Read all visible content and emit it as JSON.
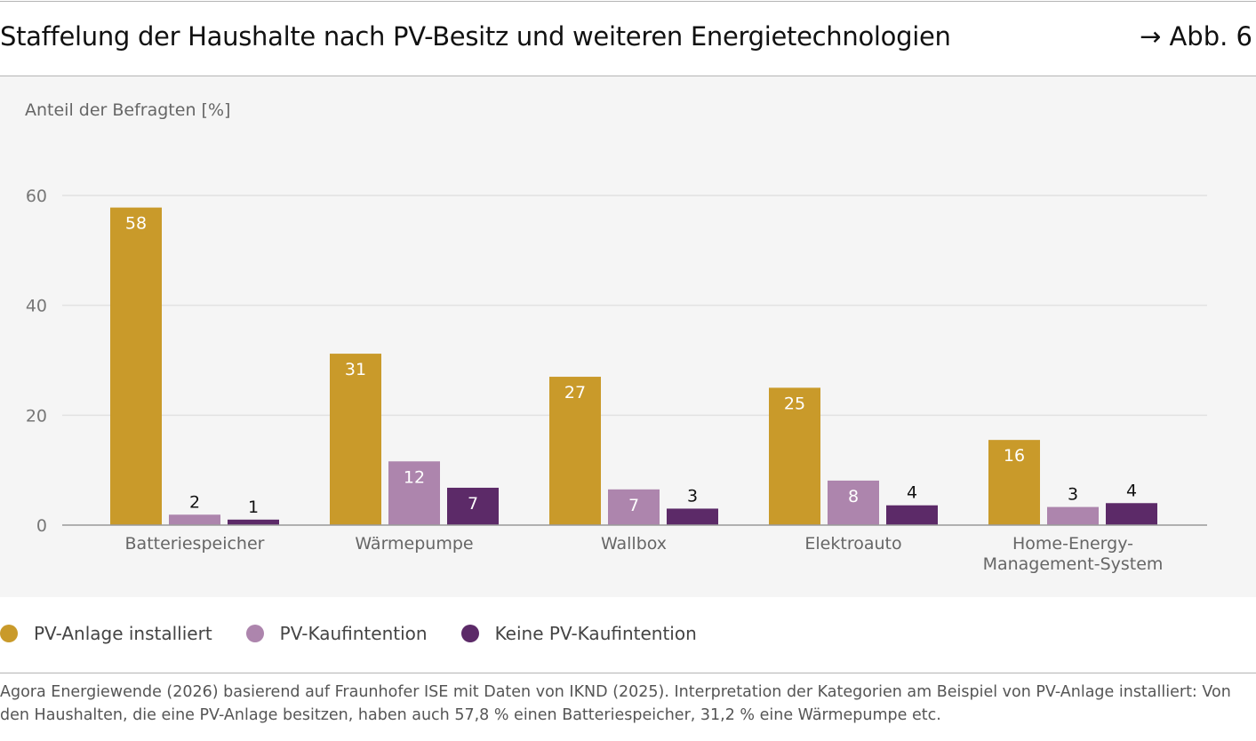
{
  "header": {
    "title": "Staffelung der Haushalte nach PV-Besitz und weiteren Energietechnologien",
    "figure_ref": "→ Abb. 6"
  },
  "chart_data": {
    "type": "bar",
    "ylabel": "Anteil der Befragten [%]",
    "xlabel": "",
    "ylim": [
      0,
      60
    ],
    "yticks": [
      0,
      20,
      40,
      60
    ],
    "grid": true,
    "legend_position": "bottom-left",
    "categories": [
      [
        "Batteriespeicher"
      ],
      [
        "Wärmepumpe"
      ],
      [
        "Wallbox"
      ],
      [
        "Elektroauto"
      ],
      [
        "Home-Energy-",
        "Management-System"
      ]
    ],
    "series": [
      {
        "name": "PV-Anlage installiert",
        "color": "#c99a2a",
        "values": [
          57.8,
          31.2,
          27,
          25,
          15.5
        ],
        "labels": [
          "58",
          "31",
          "27",
          "25",
          "16"
        ]
      },
      {
        "name": "PV-Kaufintention",
        "color": "#ad85ad",
        "values": [
          1.9,
          11.6,
          6.5,
          8.1,
          3.3
        ],
        "labels": [
          "2",
          "12",
          "7",
          "8",
          "3"
        ]
      },
      {
        "name": "Keine PV-Kaufintention",
        "color": "#5c2a68",
        "values": [
          1,
          6.8,
          3,
          3.6,
          4
        ],
        "labels": [
          "1",
          "7",
          "3",
          "4",
          "4"
        ]
      }
    ]
  },
  "footer": {
    "source": "Agora Energiewende (2026) basierend auf Fraunhofer ISE mit Daten von IKND (2025). Interpretation der Kategorien am Beispiel von PV-Anlage installiert: Von den Haushalten, die eine PV-Anlage besitzen, haben auch 57,8 % einen Batteriespeicher, 31,2 % eine Wärmepumpe etc."
  }
}
